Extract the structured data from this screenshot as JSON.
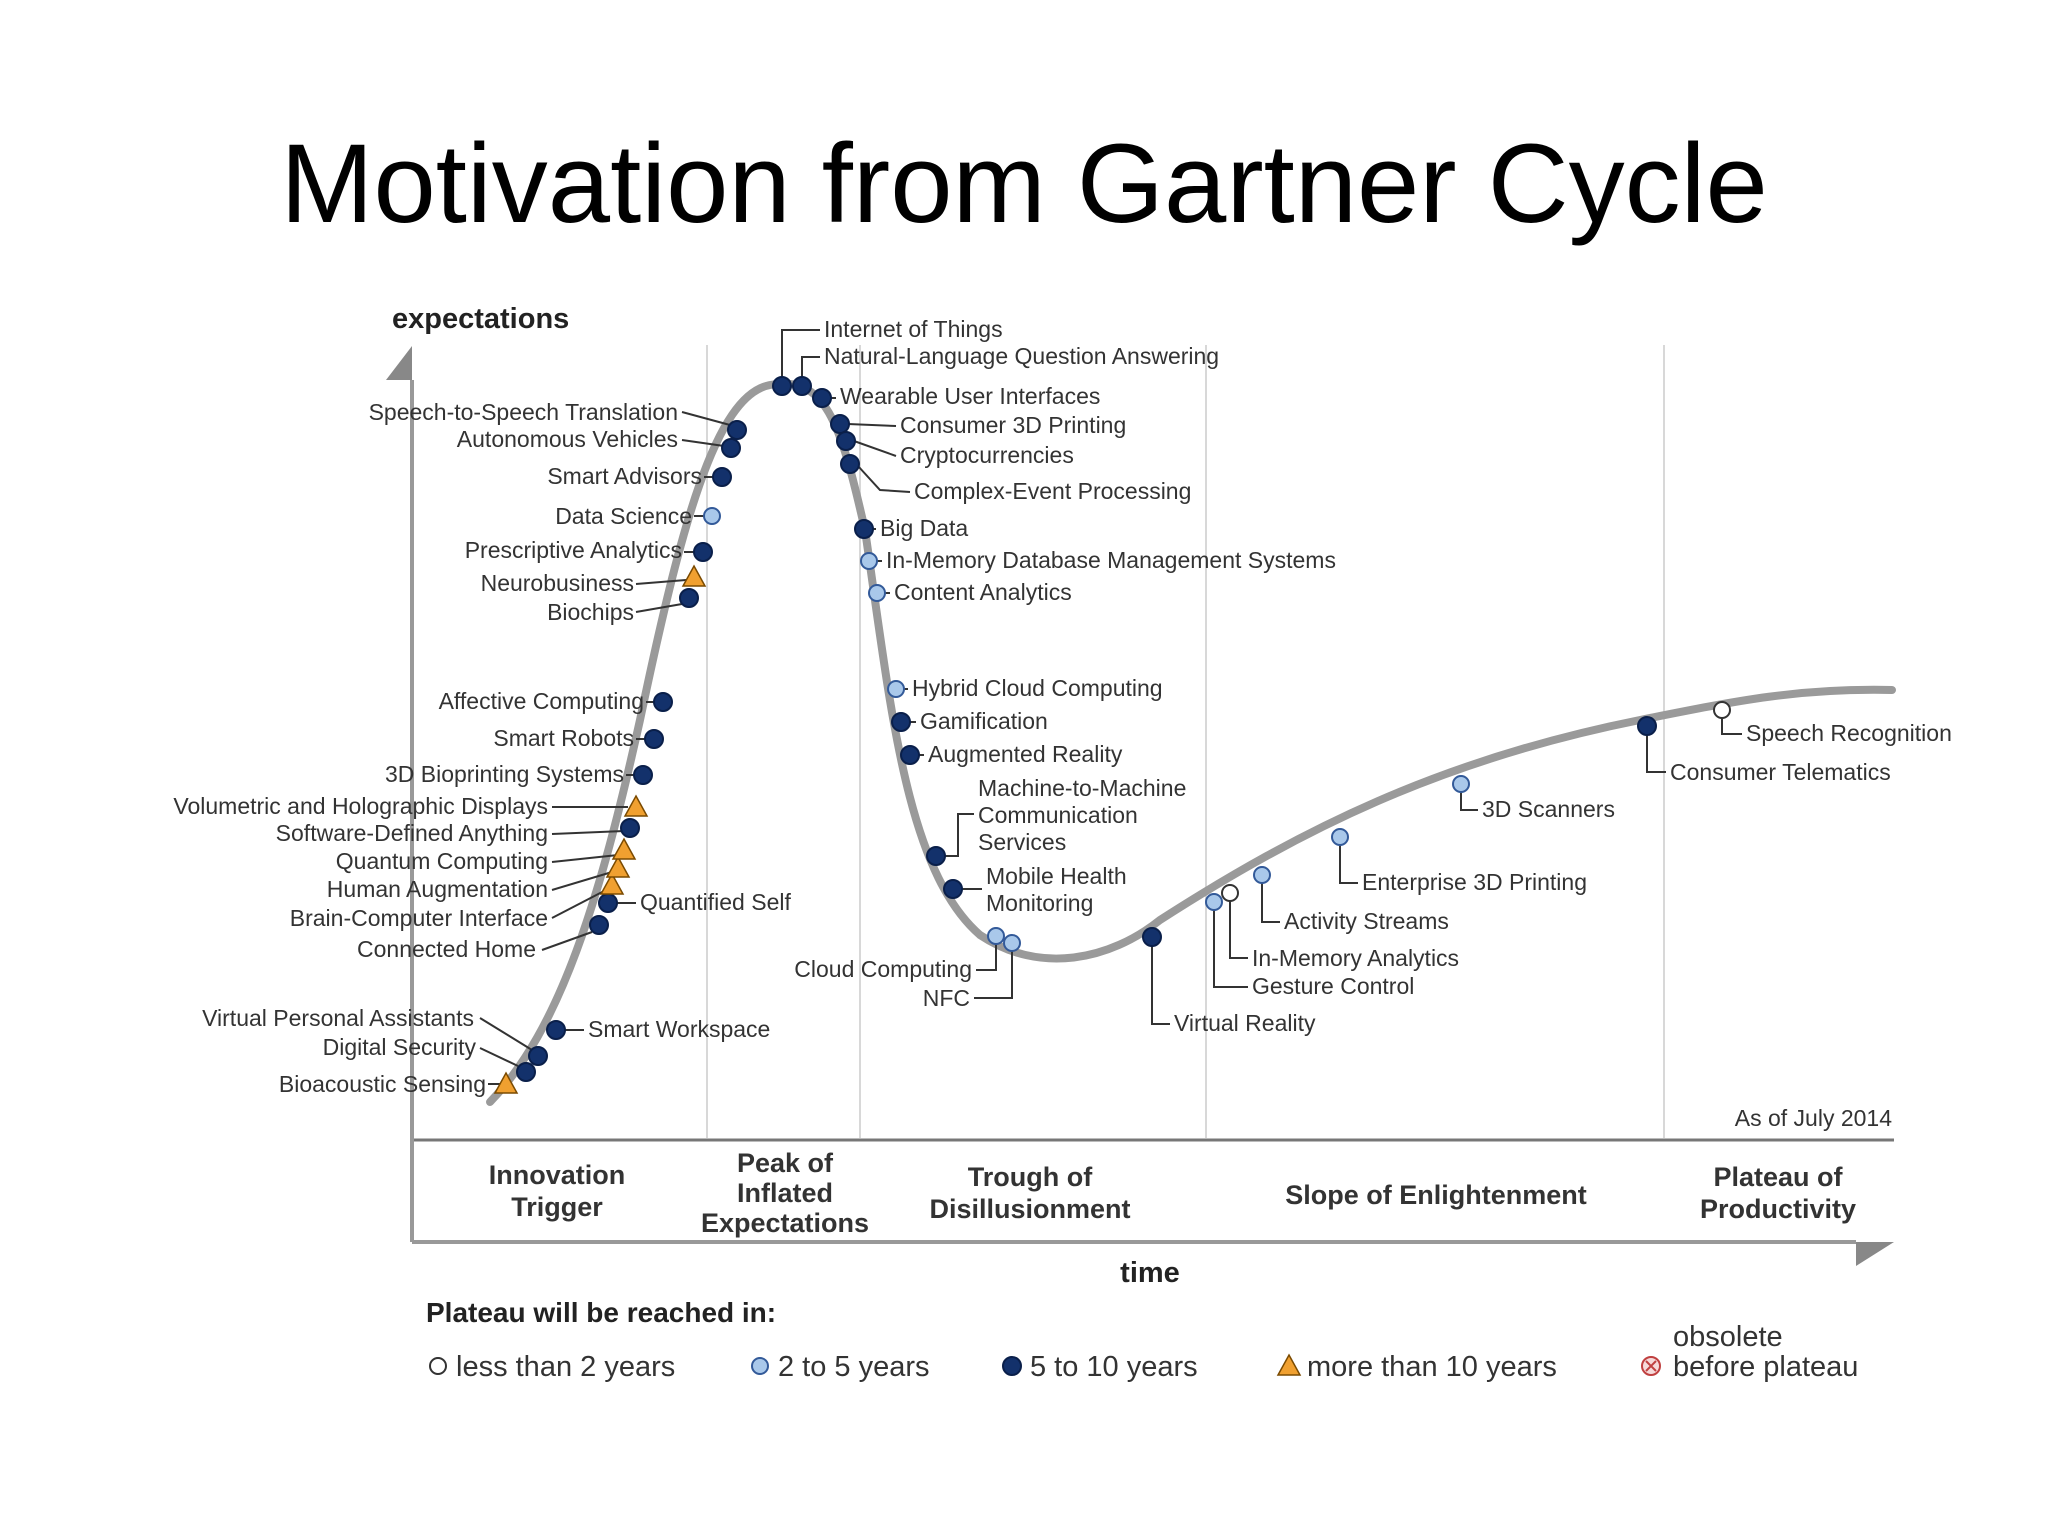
{
  "slide_title": "Motivation from Gartner Cycle",
  "y_axis_label": "expectations",
  "x_axis_label": "time",
  "as_of": "As of July 2014",
  "phases": [
    {
      "label": "Innovation Trigger"
    },
    {
      "label": "Peak of Inflated Expectations"
    },
    {
      "label": "Trough of Disillusionment"
    },
    {
      "label": "Slope of Enlightenment"
    },
    {
      "label": "Plateau of Productivity"
    }
  ],
  "legend": {
    "heading": "Plateau will be reached in:",
    "items": [
      {
        "key": "lt2",
        "label": "less than 2 years"
      },
      {
        "key": "2to5",
        "label": "2 to 5 years"
      },
      {
        "key": "5to10",
        "label": "5 to 10 years"
      },
      {
        "key": "gt10",
        "label": "more than 10 years"
      },
      {
        "key": "obsolete",
        "label": "obsolete before plateau"
      }
    ]
  },
  "colors": {
    "lt2": "#ffffff",
    "2to5": "#a9c8ea",
    "5to10": "#13316b",
    "gt10": "#f0a030",
    "obsolete": "#e38a8a",
    "curve": "#9a9a9a"
  },
  "technologies": [
    {
      "name": "Bioacoustic Sensing",
      "category": "gt10"
    },
    {
      "name": "Digital Security",
      "category": "5to10"
    },
    {
      "name": "Virtual Personal Assistants",
      "category": "5to10"
    },
    {
      "name": "Smart Workspace",
      "category": "5to10"
    },
    {
      "name": "Connected Home",
      "category": "5to10"
    },
    {
      "name": "Quantified Self",
      "category": "5to10"
    },
    {
      "name": "Brain-Computer Interface",
      "category": "gt10"
    },
    {
      "name": "Human Augmentation",
      "category": "gt10"
    },
    {
      "name": "Quantum Computing",
      "category": "gt10"
    },
    {
      "name": "Software-Defined Anything",
      "category": "5to10"
    },
    {
      "name": "Volumetric and Holographic Displays",
      "category": "gt10"
    },
    {
      "name": "3D Bioprinting Systems",
      "category": "5to10"
    },
    {
      "name": "Smart Robots",
      "category": "5to10"
    },
    {
      "name": "Affective Computing",
      "category": "5to10"
    },
    {
      "name": "Biochips",
      "category": "5to10"
    },
    {
      "name": "Neurobusiness",
      "category": "gt10"
    },
    {
      "name": "Prescriptive Analytics",
      "category": "5to10"
    },
    {
      "name": "Data Science",
      "category": "2to5"
    },
    {
      "name": "Smart Advisors",
      "category": "5to10"
    },
    {
      "name": "Autonomous Vehicles",
      "category": "5to10"
    },
    {
      "name": "Speech-to-Speech Translation",
      "category": "5to10"
    },
    {
      "name": "Internet of Things",
      "category": "5to10"
    },
    {
      "name": "Natural-Language Question Answering",
      "category": "5to10"
    },
    {
      "name": "Wearable User Interfaces",
      "category": "5to10"
    },
    {
      "name": "Consumer 3D Printing",
      "category": "5to10"
    },
    {
      "name": "Cryptocurrencies",
      "category": "5to10"
    },
    {
      "name": "Complex-Event Processing",
      "category": "5to10"
    },
    {
      "name": "Big Data",
      "category": "5to10"
    },
    {
      "name": "In-Memory Database Management Systems",
      "category": "2to5"
    },
    {
      "name": "Content Analytics",
      "category": "2to5"
    },
    {
      "name": "Hybrid Cloud Computing",
      "category": "2to5"
    },
    {
      "name": "Gamification",
      "category": "5to10"
    },
    {
      "name": "Augmented Reality",
      "category": "5to10"
    },
    {
      "name": "Machine-to-Machine Communication Services",
      "category": "5to10"
    },
    {
      "name": "Mobile Health Monitoring",
      "category": "5to10"
    },
    {
      "name": "Cloud Computing",
      "category": "2to5"
    },
    {
      "name": "NFC",
      "category": "2to5"
    },
    {
      "name": "Virtual Reality",
      "category": "5to10"
    },
    {
      "name": "Gesture Control",
      "category": "2to5"
    },
    {
      "name": "In-Memory Analytics",
      "category": "lt2"
    },
    {
      "name": "Activity Streams",
      "category": "2to5"
    },
    {
      "name": "Enterprise 3D Printing",
      "category": "2to5"
    },
    {
      "name": "3D Scanners",
      "category": "2to5"
    },
    {
      "name": "Consumer Telematics",
      "category": "5to10"
    },
    {
      "name": "Speech Recognition",
      "category": "lt2"
    }
  ]
}
